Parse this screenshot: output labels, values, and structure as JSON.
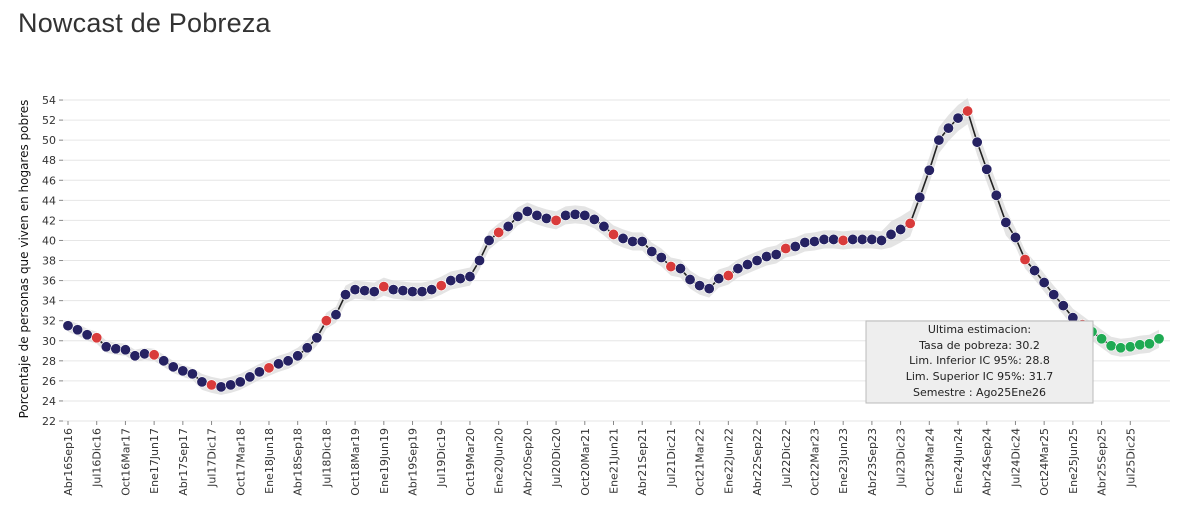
{
  "title": "Nowcast de Pobreza",
  "colors": {
    "regular": "#262262",
    "highlight": "#d93b3b",
    "estimate": "#1faa53",
    "line": "#222222",
    "band": "#d9d9d9"
  },
  "chart_data": {
    "type": "line",
    "title": "Nowcast de Pobreza",
    "xlabel": "",
    "ylabel": "Porcentaje de personas que viven en hogares pobres",
    "ylim": [
      22,
      55
    ],
    "yticks": [
      22,
      24,
      26,
      28,
      30,
      32,
      34,
      36,
      38,
      40,
      42,
      44,
      46,
      48,
      50,
      52,
      54
    ],
    "grid": true,
    "xticks": [
      "Abr16Sep16",
      "Jul16Dic16",
      "Oct16Mar17",
      "Ene17Jun17",
      "Abr17Sep17",
      "Jul17Dic17",
      "Oct17Mar18",
      "Ene18Jun18",
      "Abr18Sep18",
      "Jul18Dic18",
      "Oct18Mar19",
      "Ene19Jun19",
      "Abr19Sep19",
      "Jul19Dic19",
      "Oct19Mar20",
      "Ene20Jun20",
      "Abr20Sep20",
      "Jul20Dic20",
      "Oct20Mar21",
      "Ene21Jun21",
      "Abr21Sep21",
      "Jul21Dic21",
      "Oct21Mar22",
      "Ene22Jun22",
      "Abr22Sep22",
      "Jul22Dic22",
      "Oct22Mar23",
      "Ene23Jun23",
      "Abr23Sep23",
      "Jul23Dic23",
      "Oct23Mar24",
      "Ene24Jun24",
      "Abr24Sep24",
      "Jul24Dic24",
      "Oct24Mar25",
      "Ene25Jun25",
      "Abr25Sep25",
      "Jul25Dic25"
    ],
    "series": [
      {
        "name": "Tasa de pobreza",
        "values": [
          31.5,
          31.1,
          30.6,
          30.3,
          29.4,
          29.2,
          29.1,
          28.5,
          28.7,
          28.6,
          28.0,
          27.4,
          27.0,
          26.7,
          25.9,
          25.6,
          25.4,
          25.6,
          25.9,
          26.4,
          26.9,
          27.3,
          27.7,
          28.0,
          28.5,
          29.3,
          30.3,
          32.0,
          32.6,
          34.6,
          35.1,
          35.0,
          34.9,
          35.4,
          35.1,
          35.0,
          34.9,
          34.9,
          35.1,
          35.5,
          36.0,
          36.2,
          36.4,
          38.0,
          40.0,
          40.8,
          41.4,
          42.4,
          42.9,
          42.5,
          42.2,
          42.0,
          42.5,
          42.6,
          42.5,
          42.1,
          41.4,
          40.6,
          40.2,
          39.9,
          39.9,
          38.9,
          38.3,
          37.4,
          37.2,
          36.1,
          35.5,
          35.2,
          36.2,
          36.5,
          37.2,
          37.6,
          38.0,
          38.4,
          38.6,
          39.2,
          39.4,
          39.8,
          39.9,
          40.1,
          40.1,
          40.0,
          40.1,
          40.1,
          40.1,
          40.0,
          40.6,
          41.1,
          41.7,
          44.3,
          47.0,
          50.0,
          51.2,
          52.2,
          52.9,
          49.8,
          47.1,
          44.5,
          41.8,
          40.3,
          38.1,
          37.0,
          35.8,
          34.6,
          33.5,
          32.3,
          31.6,
          30.9,
          30.2,
          29.5,
          29.3,
          29.4,
          29.6,
          29.7,
          30.2
        ]
      }
    ],
    "highlight_indices": [
      3,
      9,
      15,
      21,
      27,
      33,
      39,
      45,
      51,
      57,
      63,
      69,
      75,
      81,
      88,
      94,
      100,
      106
    ],
    "estimate_start_index": 107,
    "tooltip": {
      "title": "Ultima estimacion:",
      "lines": [
        "Tasa de pobreza:  30.2",
        "Lim. Inferior IC 95%:  28.8",
        "Lim. Superior IC 95%:  31.7",
        "Semestre : Ago25Ene26"
      ]
    }
  }
}
